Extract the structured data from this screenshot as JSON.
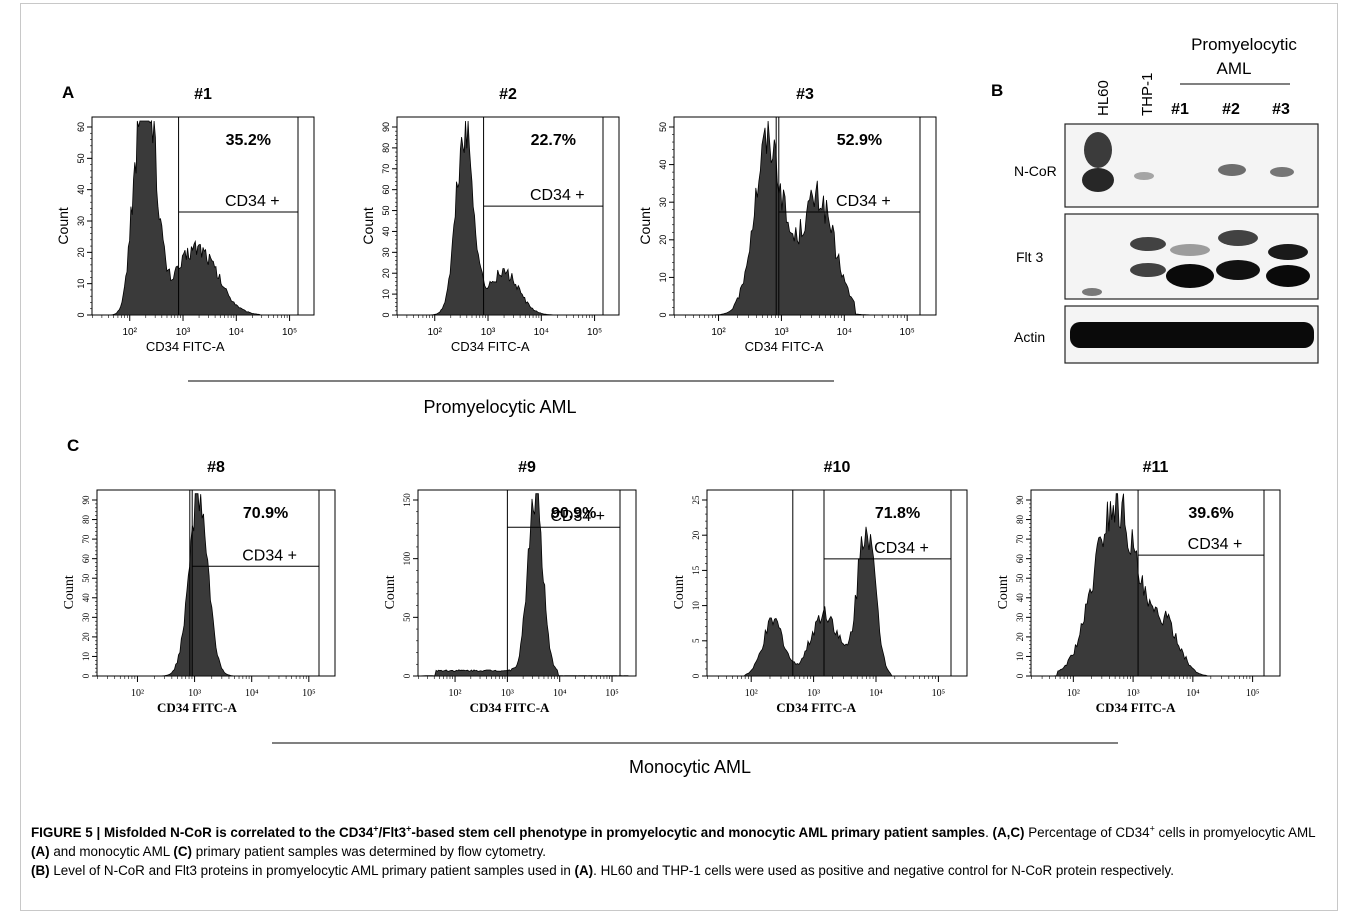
{
  "panels": {
    "A": {
      "label": "A",
      "group_label": "Promyelocytic AML",
      "charts": [
        {
          "id": "#1",
          "title": "#1",
          "pct": "35.2%",
          "gate": "CD34 +",
          "xlabel": "CD34 FITC-A",
          "ylabel": "Count",
          "yticks": [
            "0",
            "10",
            "20",
            "30",
            "40",
            "50",
            "60"
          ],
          "xticks": [
            "10²",
            "10³",
            "10⁴",
            "10⁵"
          ]
        },
        {
          "id": "#2",
          "title": "#2",
          "pct": "22.7%",
          "gate": "CD34 +",
          "xlabel": "CD34 FITC-A",
          "ylabel": "Count",
          "yticks": [
            "0",
            "10",
            "20",
            "30",
            "40",
            "50",
            "60",
            "70",
            "80",
            "90"
          ],
          "xticks": [
            "10²",
            "10³",
            "10⁴",
            "10⁵"
          ]
        },
        {
          "id": "#3",
          "title": "#3",
          "pct": "52.9%",
          "gate": "CD34 +",
          "xlabel": "CD34 FITC-A",
          "ylabel": "Count",
          "yticks": [
            "0",
            "10",
            "20",
            "30",
            "40",
            "50"
          ],
          "xticks": [
            "10²",
            "10³",
            "10⁴",
            "10⁵"
          ]
        }
      ]
    },
    "B": {
      "label": "B",
      "group_label_line1": "Promyelocytic",
      "group_label_line2": "AML",
      "lanes": [
        "HL60",
        "THP-1",
        "#1",
        "#2",
        "#3"
      ],
      "blots": [
        "N-CoR",
        "Flt 3",
        "Actin"
      ]
    },
    "C": {
      "label": "C",
      "group_label": "Monocytic AML",
      "charts": [
        {
          "id": "#8",
          "title": "#8",
          "pct": "70.9%",
          "gate": "CD34 +",
          "xlabel": "CD34 FITC-A",
          "ylabel": "Count",
          "yticks": [
            "0",
            "10",
            "20",
            "30",
            "40",
            "50",
            "60",
            "70",
            "80",
            "90"
          ],
          "xticks": [
            "10²",
            "10³",
            "10⁴",
            "10⁵"
          ]
        },
        {
          "id": "#9",
          "title": "#9",
          "pct": "90.9%",
          "gate": "CD34 +",
          "xlabel": "CD34 FITC-A",
          "ylabel": "Count",
          "yticks": [
            "0",
            "50",
            "100",
            "150"
          ],
          "xticks": [
            "10²",
            "10³",
            "10⁴",
            "10⁵"
          ]
        },
        {
          "id": "#10",
          "title": "#10",
          "pct": "71.8%",
          "gate": "CD34 +",
          "xlabel": "CD34 FITC-A",
          "ylabel": "Count",
          "yticks": [
            "0",
            "5",
            "10",
            "15",
            "20",
            "25"
          ],
          "xticks": [
            "10²",
            "10³",
            "10⁴",
            "10⁵"
          ]
        },
        {
          "id": "#11",
          "title": "#11",
          "pct": "39.6%",
          "gate": "CD34 +",
          "xlabel": "CD34 FITC-A",
          "ylabel": "Count",
          "yticks": [
            "0",
            "10",
            "20",
            "30",
            "40",
            "50",
            "60",
            "70",
            "80",
            "90"
          ],
          "xticks": [
            "10²",
            "10³",
            "10⁴",
            "10⁵"
          ]
        }
      ]
    }
  },
  "caption": {
    "figure_label": "FIGURE 5 | Misfolded N-CoR is correlated to the CD34",
    "sup1": "+",
    "mid1": "/Flt3",
    "sup2": "+",
    "title_rest": "-based stem cell phenotype in promyelocytic and monocytic AML primary patient samples",
    "dot": ". ",
    "ac_ref": "(A,C)",
    "s1a": " Percentage of CD34",
    "sup3": "+",
    "s1b": " cells in promyelocytic AML ",
    "a_ref": "(A)",
    "s1c": " and monocytic AML ",
    "c_ref": "(C)",
    "s1d": " primary patient samples was determined by flow cytometry.",
    "b_ref": "(B)",
    "s2a": " Level of N-CoR and Flt3 proteins in promyelocytic AML primary patient samples used in ",
    "a_ref2": "(A)",
    "s2b": ". HL60 and THP-1 cells were used as positive and negative control for N-CoR protein respectively."
  },
  "colors": {
    "fill": "#3a3a3a",
    "axis": "#000000",
    "frame": "#c8c8c8"
  }
}
